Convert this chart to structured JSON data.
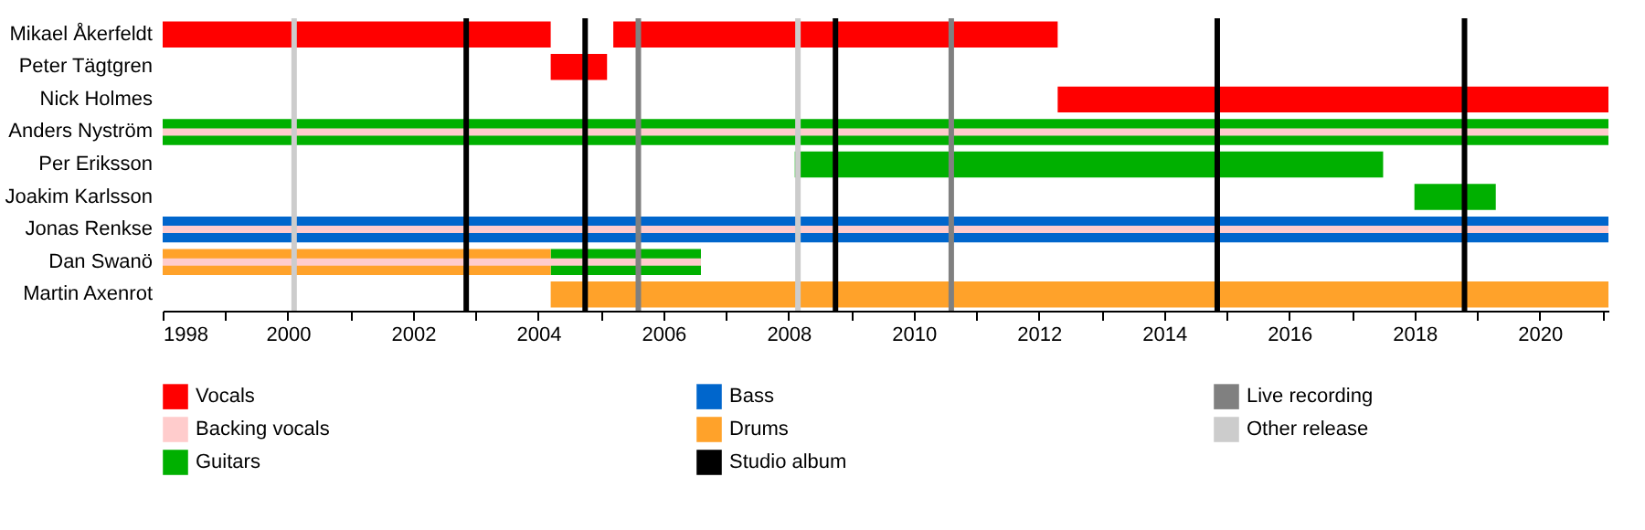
{
  "chart_data": {
    "type": "bar",
    "orientation": "horizontal",
    "categories": [
      "Mikael Åkerfeldt",
      "Peter Tägtgren",
      "Nick Holmes",
      "Anders Nyström",
      "Per Eriksson",
      "Joakim Karlsson",
      "Jonas Renkse",
      "Dan Swanö",
      "Martin Axenrot"
    ],
    "series": [
      {
        "name": "Vocals",
        "color": "#ff0000",
        "base": [
          1998,
          2004.2,
          2012.3,
          null,
          null,
          null,
          null,
          null,
          null
        ],
        "values": [
          6.2,
          0.9,
          8.8,
          null,
          null,
          null,
          null,
          null,
          null
        ]
      },
      {
        "name": "Backing vocals",
        "color": "#ffcccc",
        "base": [
          null,
          null,
          null,
          1998,
          null,
          null,
          1998,
          1998,
          null
        ],
        "values": [
          null,
          null,
          null,
          23.1,
          null,
          null,
          23.1,
          8.6,
          null
        ]
      },
      {
        "name": "Guitars",
        "color": "#00b000",
        "base": [
          null,
          null,
          null,
          1998,
          2008.1,
          2018.0,
          null,
          2004.2,
          null
        ],
        "values": [
          null,
          null,
          null,
          23.1,
          9.4,
          1.3,
          null,
          2.4,
          null
        ]
      },
      {
        "name": "Bass",
        "color": "#0066cc",
        "base": [
          null,
          null,
          null,
          null,
          null,
          null,
          1998,
          null,
          null
        ],
        "values": [
          null,
          null,
          null,
          null,
          null,
          null,
          23.1,
          null,
          null
        ]
      },
      {
        "name": "Drums",
        "color": "#ffa22a",
        "base": [
          null,
          null,
          null,
          null,
          null,
          null,
          null,
          1998,
          2004.2
        ],
        "values": [
          null,
          null,
          null,
          null,
          null,
          null,
          null,
          6.2,
          16.9
        ]
      },
      {
        "color": "#ff0000",
        "base": [
          2005.2,
          null,
          null,
          null,
          null,
          null,
          null,
          null,
          null
        ],
        "values": [
          7.1,
          null,
          null,
          null,
          null,
          null,
          null,
          null,
          null
        ]
      }
    ],
    "ref_lines": [
      {
        "axis": "x",
        "value": 2002.85,
        "label": "Studio album",
        "color": "#000000"
      },
      {
        "axis": "x",
        "value": 2004.75,
        "color": "#000000"
      },
      {
        "axis": "x",
        "value": 2008.75,
        "color": "#000000"
      },
      {
        "axis": "x",
        "value": 2014.85,
        "color": "#000000"
      },
      {
        "axis": "x",
        "value": 2018.8,
        "color": "#000000"
      },
      {
        "axis": "x",
        "value": 2005.6,
        "label": "Live recording",
        "color": "#808080"
      },
      {
        "axis": "x",
        "value": 2010.6,
        "color": "#808080"
      },
      {
        "axis": "x",
        "value": 2000.1,
        "label": "Other release",
        "color": "#cccccc"
      },
      {
        "axis": "x",
        "value": 2008.15,
        "color": "#cccccc"
      }
    ],
    "xlim": [
      1998,
      2021.1
    ],
    "xticks": [
      1998,
      {
        "value": 1999,
        "label": null
      },
      2000,
      {
        "value": 2001,
        "label": null
      },
      2002,
      {
        "value": 2003,
        "label": null
      },
      2004,
      {
        "value": 2005,
        "label": null
      },
      2006,
      {
        "value": 2007,
        "label": null
      },
      2008,
      {
        "value": 2009,
        "label": null
      },
      2010,
      {
        "value": 2011,
        "label": null
      },
      2012,
      {
        "value": 2013,
        "label": null
      },
      2014,
      {
        "value": 2015,
        "label": null
      },
      2016,
      {
        "value": 2017,
        "label": null
      },
      2018,
      {
        "value": 2019,
        "label": null
      },
      2020,
      {
        "value": 2021,
        "label": null
      }
    ],
    "legend": "bottom",
    "grid": false
  }
}
